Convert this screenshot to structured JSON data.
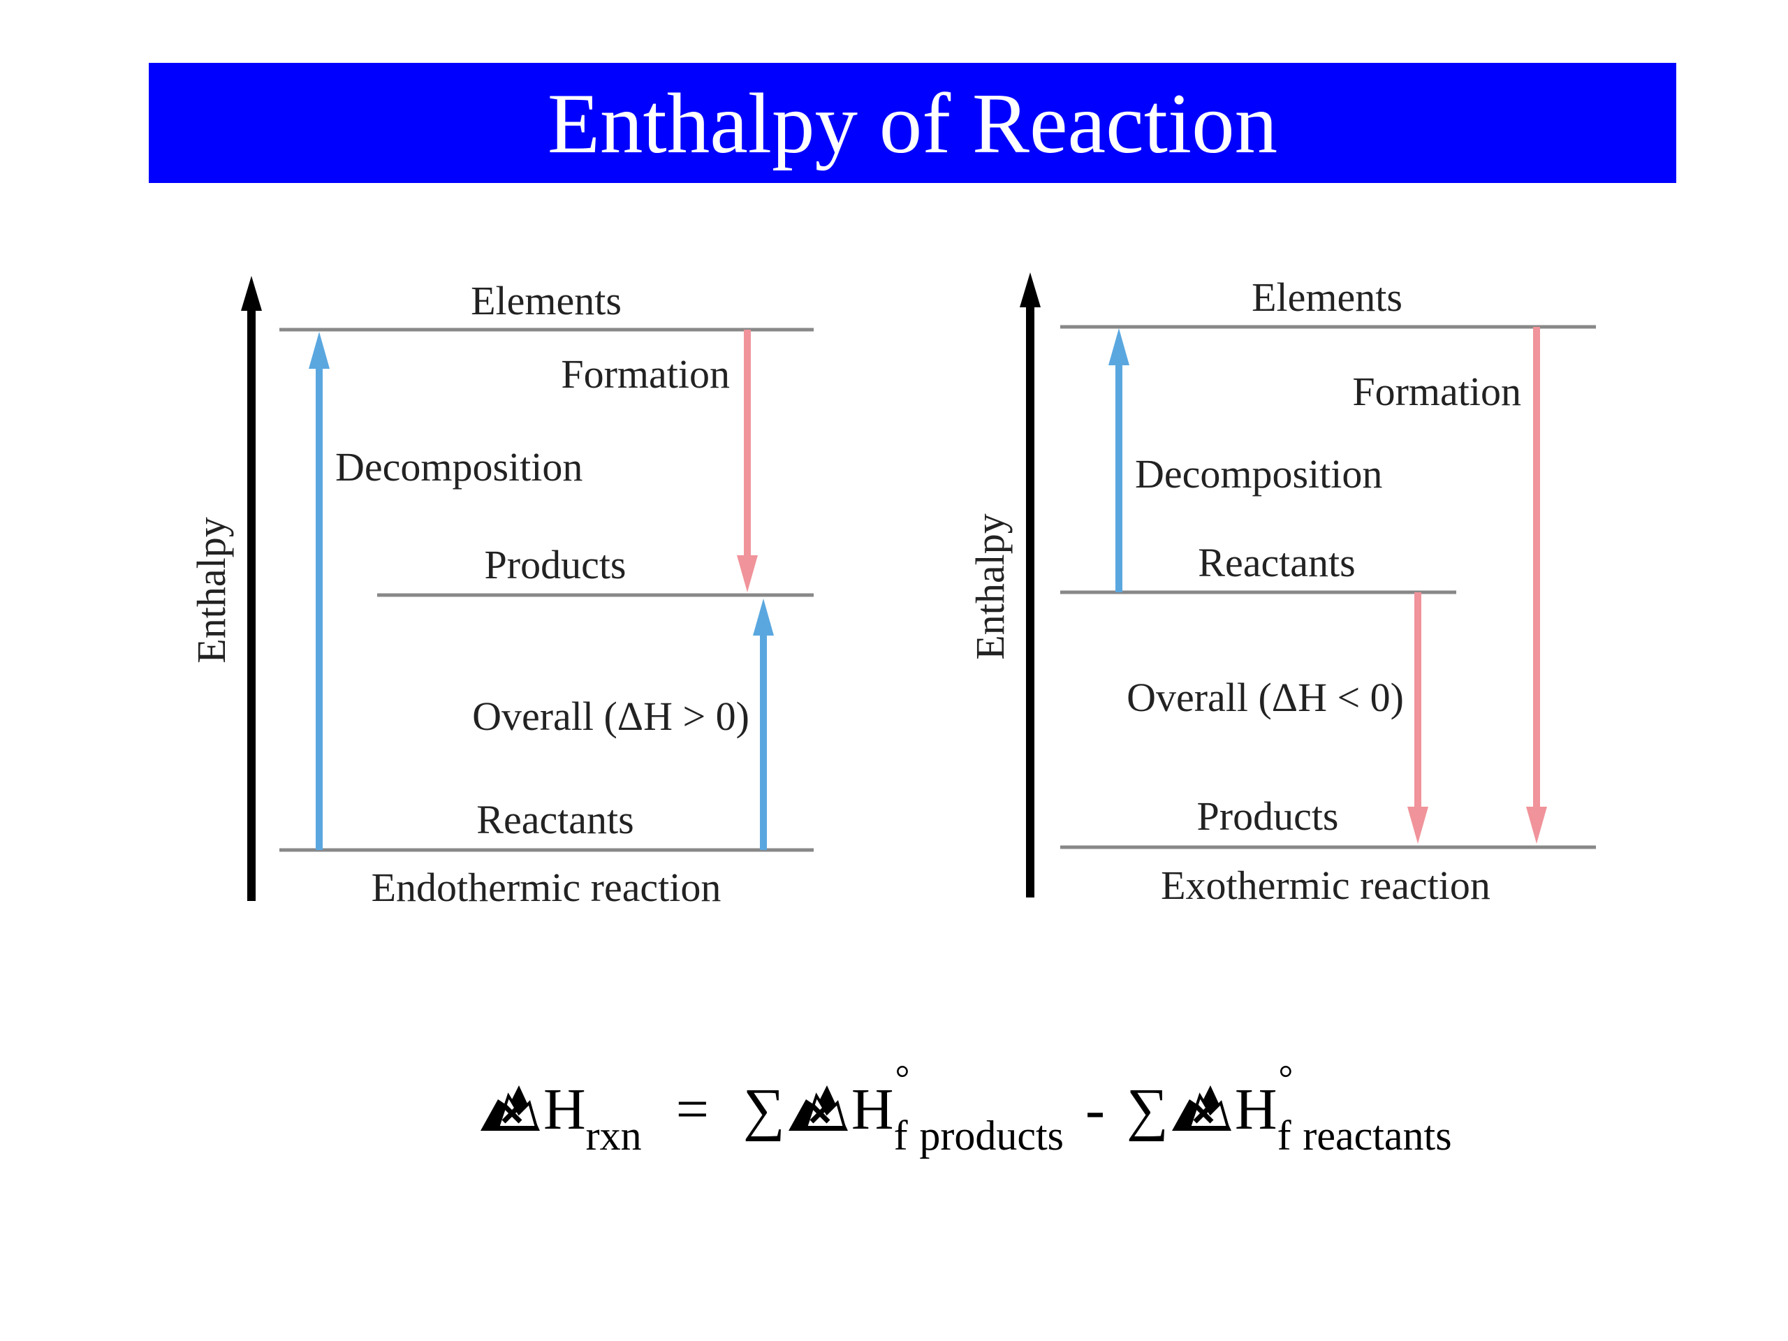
{
  "title": "Enthalpy of Reaction",
  "colors": {
    "banner": "#0000ff",
    "blue_arrow": "#5aa7e0",
    "red_arrow": "#f0939a",
    "level_line": "#888888",
    "axis": "#000000"
  },
  "endothermic": {
    "axis_label": "Enthalpy",
    "elements": "Elements",
    "formation": "Formation",
    "decomposition": "Decomposition",
    "products": "Products",
    "overall": "Overall (ΔH > 0)",
    "reactants": "Reactants",
    "caption": "Endothermic reaction"
  },
  "exothermic": {
    "axis_label": "Enthalpy",
    "elements": "Elements",
    "formation": "Formation",
    "decomposition": "Decomposition",
    "reactants": "Reactants",
    "overall": "Overall (ΔH < 0)",
    "products": "Products",
    "caption": "Exothermic reaction"
  },
  "formula": {
    "glyph_icon": "broken-delta-icon",
    "H": "H",
    "rxn": "rxn",
    "equals": "=",
    "sum": "∑",
    "f": "f",
    "degree": "°",
    "products": "products",
    "minus": "-",
    "reactants": "reactants"
  }
}
